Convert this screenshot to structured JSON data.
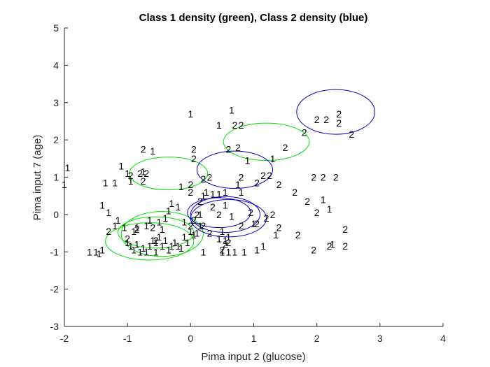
{
  "chart_data": {
    "type": "scatter",
    "title": "Class 1 density (green), Class 2 density (blue)",
    "xlabel": "Pima input 2 (glucose)",
    "ylabel": "Pima input 7 (age)",
    "xlim": [
      -2,
      4
    ],
    "ylim": [
      -3,
      5
    ],
    "xticks": [
      "-2",
      "-1",
      "0",
      "1",
      "2",
      "3",
      "4"
    ],
    "yticks": [
      "-3",
      "-2",
      "-1",
      "0",
      "1",
      "2",
      "3",
      "4",
      "5"
    ],
    "grid": false,
    "series": [
      {
        "marker": "1",
        "color": "#000000",
        "points": [
          [
            -1.95,
            1.25
          ],
          [
            -2.0,
            0.8
          ],
          [
            -1.6,
            -1.0
          ],
          [
            -1.5,
            -1.0
          ],
          [
            -1.45,
            -1.05
          ],
          [
            -1.4,
            -0.95
          ],
          [
            -1.4,
            0.25
          ],
          [
            -1.3,
            0.05
          ],
          [
            -1.35,
            0.85
          ],
          [
            -1.2,
            0.85
          ],
          [
            -1.1,
            1.3
          ],
          [
            -1.0,
            1.1
          ],
          [
            -0.95,
            0.9
          ],
          [
            -0.6,
            1.7
          ],
          [
            -0.75,
            1.15
          ],
          [
            -1.2,
            -0.3
          ],
          [
            -1.15,
            -0.15
          ],
          [
            -1.05,
            -0.35
          ],
          [
            -1.0,
            -0.75
          ],
          [
            -0.95,
            -0.85
          ],
          [
            -0.9,
            -0.95
          ],
          [
            -0.85,
            -0.8
          ],
          [
            -0.8,
            -1.0
          ],
          [
            -0.75,
            -0.9
          ],
          [
            -0.7,
            -1.0
          ],
          [
            -0.65,
            -0.85
          ],
          [
            -0.6,
            -0.7
          ],
          [
            -0.55,
            -0.75
          ],
          [
            -0.5,
            -0.6
          ],
          [
            -0.45,
            -0.85
          ],
          [
            -0.4,
            -0.7
          ],
          [
            -0.35,
            -0.95
          ],
          [
            -0.3,
            -0.85
          ],
          [
            -0.25,
            -0.75
          ],
          [
            -0.2,
            -0.85
          ],
          [
            -0.15,
            -0.9
          ],
          [
            -0.1,
            -0.6
          ],
          [
            -0.05,
            -0.75
          ],
          [
            -0.9,
            -0.45
          ],
          [
            -0.85,
            -0.35
          ],
          [
            -0.7,
            -0.3
          ],
          [
            -0.65,
            -0.15
          ],
          [
            -0.5,
            -0.2
          ],
          [
            -0.45,
            -0.4
          ],
          [
            -0.4,
            -0.1
          ],
          [
            -0.35,
            0.1
          ],
          [
            -0.3,
            0.3
          ],
          [
            -0.2,
            0.2
          ],
          [
            -0.1,
            -0.2
          ],
          [
            0.0,
            -0.45
          ],
          [
            0.05,
            -0.55
          ],
          [
            0.1,
            -0.5
          ],
          [
            0.15,
            -0.3
          ],
          [
            0.15,
            0.0
          ],
          [
            0.2,
            0.5
          ],
          [
            0.25,
            0.6
          ],
          [
            0.35,
            0.55
          ],
          [
            0.45,
            0.55
          ],
          [
            0.55,
            0.6
          ],
          [
            -0.15,
            0.75
          ],
          [
            0.0,
            2.7
          ],
          [
            0.45,
            2.4
          ],
          [
            0.65,
            2.8
          ],
          [
            0.9,
            1.45
          ],
          [
            1.3,
            1.5
          ],
          [
            0.8,
            0.6
          ],
          [
            0.75,
            0.8
          ],
          [
            0.55,
            0.25
          ],
          [
            0.65,
            -0.05
          ],
          [
            1.0,
            -0.25
          ],
          [
            0.5,
            -0.45
          ],
          [
            0.45,
            -0.65
          ],
          [
            0.55,
            -0.7
          ],
          [
            0.6,
            -0.6
          ],
          [
            0.5,
            -1.0
          ],
          [
            0.6,
            -1.0
          ],
          [
            0.7,
            -1.0
          ],
          [
            0.85,
            -1.0
          ],
          [
            1.05,
            -0.95
          ],
          [
            1.15,
            -0.85
          ],
          [
            1.35,
            -0.55
          ],
          [
            2.1,
            0.4
          ],
          [
            2.2,
            0.15
          ],
          [
            2.25,
            -0.8
          ],
          [
            0.2,
            -1.0
          ],
          [
            -0.55,
            -1.0
          ]
        ]
      },
      {
        "marker": "2",
        "color": "#000000",
        "points": [
          [
            -0.75,
            1.75
          ],
          [
            -0.95,
            1.05
          ],
          [
            -0.8,
            1.1
          ],
          [
            -0.7,
            1.1
          ],
          [
            -0.75,
            0.9
          ],
          [
            -1.3,
            -0.45
          ],
          [
            -1.0,
            -0.65
          ],
          [
            -0.85,
            -0.4
          ],
          [
            -0.6,
            -0.35
          ],
          [
            -0.55,
            -0.7
          ],
          [
            0.0,
            -0.3
          ],
          [
            0.05,
            -0.15
          ],
          [
            0.2,
            -0.3
          ],
          [
            0.3,
            -0.5
          ],
          [
            0.45,
            0.0
          ],
          [
            0.3,
            1.0
          ],
          [
            0.05,
            1.75
          ],
          [
            0.05,
            1.5
          ],
          [
            0.2,
            0.95
          ],
          [
            0.0,
            0.8
          ],
          [
            0.0,
            0.6
          ],
          [
            0.15,
            0.35
          ],
          [
            0.35,
            0.2
          ],
          [
            0.1,
            0.0
          ],
          [
            0.6,
            -0.75
          ],
          [
            0.5,
            -0.95
          ],
          [
            0.55,
            -0.8
          ],
          [
            0.8,
            -0.3
          ],
          [
            0.95,
            0.05
          ],
          [
            1.3,
            0.0
          ],
          [
            1.2,
            -0.1
          ],
          [
            1.05,
            -0.25
          ],
          [
            1.4,
            -0.35
          ],
          [
            1.7,
            -0.55
          ],
          [
            1.95,
            -0.95
          ],
          [
            1.65,
            0.6
          ],
          [
            1.85,
            0.35
          ],
          [
            1.95,
            1.0
          ],
          [
            2.1,
            1.0
          ],
          [
            2.3,
            1.0
          ],
          [
            2.0,
            0.05
          ],
          [
            2.2,
            -0.85
          ],
          [
            2.45,
            -0.85
          ],
          [
            2.45,
            -0.4
          ],
          [
            1.4,
            0.8
          ],
          [
            1.05,
            0.85
          ],
          [
            0.6,
            1.75
          ],
          [
            0.75,
            1.8
          ],
          [
            0.7,
            2.4
          ],
          [
            0.8,
            2.4
          ],
          [
            1.15,
            1.05
          ],
          [
            1.25,
            1.05
          ],
          [
            1.8,
            2.2
          ],
          [
            2.0,
            2.55
          ],
          [
            2.15,
            2.55
          ],
          [
            2.35,
            2.45
          ],
          [
            2.35,
            2.7
          ],
          [
            2.55,
            2.15
          ],
          [
            1.5,
            1.8
          ],
          [
            0.8,
            1.0
          ]
        ]
      }
    ],
    "ellipses": [
      {
        "class": "Class 1",
        "color": "#00e000",
        "cx": -0.35,
        "cy": 1.1,
        "rx": 0.62,
        "ry": 0.44
      },
      {
        "class": "Class 1",
        "color": "#00e000",
        "cx": 1.2,
        "cy": 1.95,
        "rx": 0.68,
        "ry": 0.5
      },
      {
        "class": "Class 1",
        "color": "#00e000",
        "cx": -0.45,
        "cy": -0.52,
        "rx": 0.65,
        "ry": 0.6
      },
      {
        "class": "Class 1",
        "color": "#00e000",
        "cx": -0.65,
        "cy": -0.72,
        "rx": 0.7,
        "ry": 0.5
      },
      {
        "class": "Class 1",
        "color": "#00e000",
        "cx": -0.55,
        "cy": -0.48,
        "rx": 0.6,
        "ry": 0.42
      },
      {
        "class": "Class 2",
        "color": "#0000c8",
        "cx": 2.3,
        "cy": 2.75,
        "rx": 0.62,
        "ry": 0.6
      },
      {
        "class": "Class 2",
        "color": "#0000c8",
        "cx": 0.7,
        "cy": 1.2,
        "rx": 0.6,
        "ry": 0.5
      },
      {
        "class": "Class 2",
        "color": "#0000c8",
        "cx": 0.55,
        "cy": 0.0,
        "rx": 0.55,
        "ry": 0.48
      },
      {
        "class": "Class 2",
        "color": "#0000c8",
        "cx": 0.6,
        "cy": -0.1,
        "rx": 0.6,
        "ry": 0.5
      },
      {
        "class": "Class 2",
        "color": "#0000c8",
        "cx": 0.45,
        "cy": 0.05,
        "rx": 0.5,
        "ry": 0.4
      }
    ]
  }
}
